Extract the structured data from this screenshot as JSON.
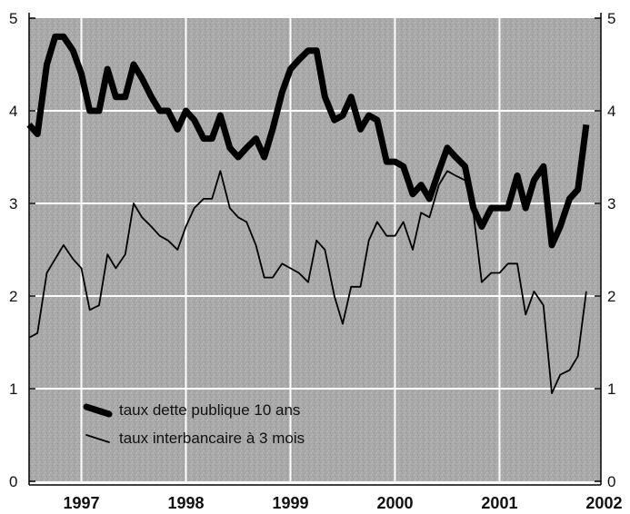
{
  "chart_data": {
    "type": "line",
    "title": "",
    "xlabel": "",
    "ylabel": "",
    "ylim": [
      0,
      5
    ],
    "xlim": [
      1996.5,
      2001.97
    ],
    "y_ticks": [
      "0",
      "1",
      "2",
      "3",
      "4",
      "5"
    ],
    "x_ticks": [
      {
        "label": "1997",
        "at": 1997.0
      },
      {
        "label": "1998",
        "at": 1998.0
      },
      {
        "label": "1999",
        "at": 1999.0
      },
      {
        "label": "2000",
        "at": 2000.0
      },
      {
        "label": "2001",
        "at": 2001.0
      },
      {
        "label": "2002",
        "at": 2002.0
      }
    ],
    "grid": true,
    "legend_position": "bottom-left",
    "background_color": "#a9a9a9",
    "grid_color": "#ffffff",
    "series": [
      {
        "name": "taux dette publique 10 ans",
        "style": "thick",
        "color": "#000000",
        "points": [
          [
            1996.5,
            3.85
          ],
          [
            1996.58,
            3.75
          ],
          [
            1996.67,
            4.5
          ],
          [
            1996.75,
            4.8
          ],
          [
            1996.83,
            4.8
          ],
          [
            1996.92,
            4.65
          ],
          [
            1997.0,
            4.4
          ],
          [
            1997.08,
            4.0
          ],
          [
            1997.17,
            4.0
          ],
          [
            1997.25,
            4.45
          ],
          [
            1997.33,
            4.15
          ],
          [
            1997.42,
            4.15
          ],
          [
            1997.5,
            4.5
          ],
          [
            1997.58,
            4.35
          ],
          [
            1997.67,
            4.15
          ],
          [
            1997.75,
            4.0
          ],
          [
            1997.83,
            4.0
          ],
          [
            1997.92,
            3.8
          ],
          [
            1998.0,
            4.0
          ],
          [
            1998.08,
            3.9
          ],
          [
            1998.17,
            3.7
          ],
          [
            1998.25,
            3.7
          ],
          [
            1998.33,
            3.95
          ],
          [
            1998.42,
            3.6
          ],
          [
            1998.5,
            3.5
          ],
          [
            1998.58,
            3.6
          ],
          [
            1998.67,
            3.7
          ],
          [
            1998.75,
            3.5
          ],
          [
            1998.83,
            3.8
          ],
          [
            1998.92,
            4.2
          ],
          [
            1999.0,
            4.45
          ],
          [
            1999.08,
            4.55
          ],
          [
            1999.17,
            4.65
          ],
          [
            1999.25,
            4.65
          ],
          [
            1999.33,
            4.15
          ],
          [
            1999.42,
            3.9
          ],
          [
            1999.5,
            3.95
          ],
          [
            1999.58,
            4.15
          ],
          [
            1999.67,
            3.8
          ],
          [
            1999.75,
            3.95
          ],
          [
            1999.83,
            3.9
          ],
          [
            1999.92,
            3.45
          ],
          [
            2000.0,
            3.45
          ],
          [
            2000.08,
            3.4
          ],
          [
            2000.17,
            3.1
          ],
          [
            2000.25,
            3.2
          ],
          [
            2000.33,
            3.05
          ],
          [
            2000.42,
            3.35
          ],
          [
            2000.5,
            3.6
          ],
          [
            2000.58,
            3.5
          ],
          [
            2000.67,
            3.4
          ],
          [
            2000.75,
            2.95
          ],
          [
            2000.83,
            2.75
          ],
          [
            2000.92,
            2.95
          ],
          [
            2001.0,
            2.95
          ],
          [
            2001.08,
            2.95
          ],
          [
            2001.17,
            3.3
          ],
          [
            2001.25,
            2.95
          ],
          [
            2001.33,
            3.25
          ],
          [
            2001.42,
            3.4
          ],
          [
            2001.5,
            2.55
          ],
          [
            2001.58,
            2.75
          ],
          [
            2001.67,
            3.05
          ],
          [
            2001.75,
            3.15
          ],
          [
            2001.83,
            3.85
          ]
        ]
      },
      {
        "name": "taux interbancaire à 3 mois",
        "style": "thin",
        "color": "#000000",
        "points": [
          [
            1996.5,
            1.55
          ],
          [
            1996.58,
            1.6
          ],
          [
            1996.67,
            2.25
          ],
          [
            1996.75,
            2.4
          ],
          [
            1996.83,
            2.55
          ],
          [
            1996.92,
            2.4
          ],
          [
            1997.0,
            2.3
          ],
          [
            1997.08,
            1.85
          ],
          [
            1997.17,
            1.9
          ],
          [
            1997.25,
            2.45
          ],
          [
            1997.33,
            2.3
          ],
          [
            1997.42,
            2.45
          ],
          [
            1997.5,
            3.0
          ],
          [
            1997.58,
            2.85
          ],
          [
            1997.67,
            2.75
          ],
          [
            1997.75,
            2.65
          ],
          [
            1997.83,
            2.6
          ],
          [
            1997.92,
            2.5
          ],
          [
            1998.0,
            2.75
          ],
          [
            1998.08,
            2.95
          ],
          [
            1998.17,
            3.05
          ],
          [
            1998.25,
            3.05
          ],
          [
            1998.33,
            3.35
          ],
          [
            1998.42,
            2.95
          ],
          [
            1998.5,
            2.85
          ],
          [
            1998.58,
            2.8
          ],
          [
            1998.67,
            2.55
          ],
          [
            1998.75,
            2.2
          ],
          [
            1998.83,
            2.2
          ],
          [
            1998.92,
            2.35
          ],
          [
            1999.0,
            2.3
          ],
          [
            1999.08,
            2.25
          ],
          [
            1999.17,
            2.15
          ],
          [
            1999.25,
            2.6
          ],
          [
            1999.33,
            2.5
          ],
          [
            1999.42,
            2.0
          ],
          [
            1999.5,
            1.7
          ],
          [
            1999.58,
            2.1
          ],
          [
            1999.67,
            2.1
          ],
          [
            1999.75,
            2.6
          ],
          [
            1999.83,
            2.8
          ],
          [
            1999.92,
            2.65
          ],
          [
            2000.0,
            2.65
          ],
          [
            2000.08,
            2.8
          ],
          [
            2000.17,
            2.5
          ],
          [
            2000.25,
            2.9
          ],
          [
            2000.33,
            2.85
          ],
          [
            2000.42,
            3.2
          ],
          [
            2000.5,
            3.35
          ],
          [
            2000.58,
            3.3
          ],
          [
            2000.67,
            3.25
          ],
          [
            2000.75,
            2.9
          ],
          [
            2000.83,
            2.15
          ],
          [
            2000.92,
            2.25
          ],
          [
            2001.0,
            2.25
          ],
          [
            2001.08,
            2.35
          ],
          [
            2001.17,
            2.35
          ],
          [
            2001.25,
            1.8
          ],
          [
            2001.33,
            2.05
          ],
          [
            2001.42,
            1.9
          ],
          [
            2001.5,
            0.95
          ],
          [
            2001.58,
            1.15
          ],
          [
            2001.67,
            1.2
          ],
          [
            2001.75,
            1.35
          ],
          [
            2001.83,
            2.05
          ]
        ]
      }
    ]
  }
}
